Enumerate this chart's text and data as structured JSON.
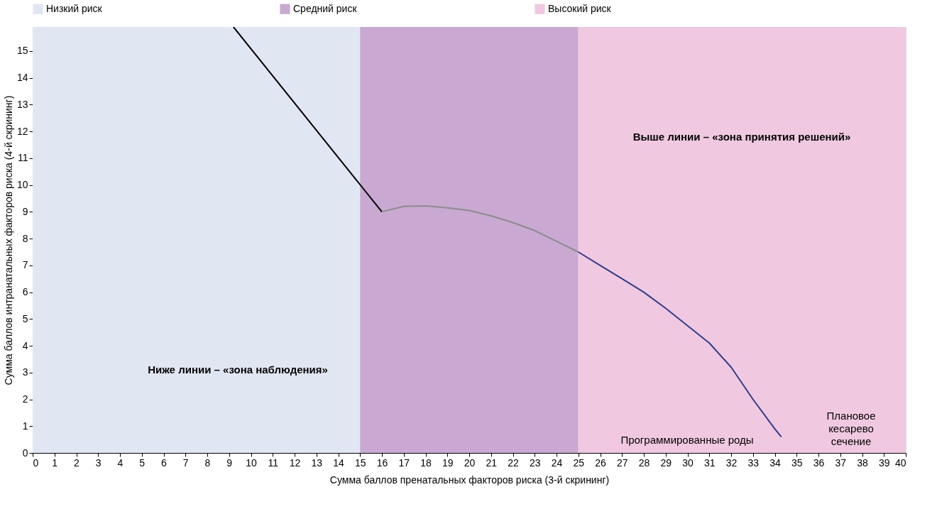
{
  "chart_data": {
    "type": "line",
    "xlabel": "Сумма баллов пренатальных факторов риска (3-й скрининг)",
    "ylabel": "Сумма баллов интранатальных факторов риска (4-й скрининг)",
    "xlim": [
      0,
      40
    ],
    "ylim": [
      0,
      15.9
    ],
    "xticks": [
      0,
      1,
      2,
      3,
      4,
      5,
      6,
      7,
      8,
      9,
      10,
      11,
      12,
      13,
      14,
      15,
      16,
      17,
      18,
      19,
      20,
      21,
      22,
      23,
      24,
      25,
      26,
      27,
      28,
      29,
      30,
      31,
      32,
      33,
      34,
      35,
      36,
      37,
      38,
      39,
      40
    ],
    "yticks": [
      0,
      1,
      2,
      3,
      4,
      5,
      6,
      7,
      8,
      9,
      10,
      11,
      12,
      13,
      14,
      15
    ],
    "grid": false,
    "legend": "top",
    "marker": "none",
    "line_style": "solid",
    "series": [
      {
        "color": "#000000",
        "x": [
          9.2,
          16
        ],
        "values": [
          15.9,
          9
        ]
      },
      {
        "color": "#8c8c8c",
        "x": [
          16,
          17,
          18,
          19,
          20,
          21,
          22,
          23,
          24,
          25
        ],
        "values": [
          9,
          9.2,
          9.22,
          9.15,
          9.05,
          8.85,
          8.6,
          8.3,
          7.9,
          7.5
        ]
      },
      {
        "color": "#2b3d8f",
        "x": [
          25,
          26,
          27,
          28,
          29,
          30,
          31,
          32,
          33,
          34,
          34.3
        ],
        "values": [
          7.5,
          7.0,
          6.5,
          6.0,
          5.4,
          4.75,
          4.1,
          3.2,
          2.0,
          0.9,
          0.6
        ]
      }
    ],
    "bands": [
      {
        "axis": "x",
        "from": 0,
        "to": 15,
        "label": "Низкий риск",
        "color": "#e1e6f3"
      },
      {
        "axis": "x",
        "from": 15,
        "to": 25,
        "label": "Средний риск",
        "color": "#c9a9d1"
      },
      {
        "axis": "x",
        "from": 25,
        "to": 40,
        "label": "Высокий риск",
        "color": "#f0c8e0"
      }
    ],
    "annotations": [
      "Выше линии – «зона принятия решений»",
      "Ниже линии – «зона наблюдения»",
      "Программированные роды",
      "Плановое\nкесарево\nсечение"
    ]
  }
}
